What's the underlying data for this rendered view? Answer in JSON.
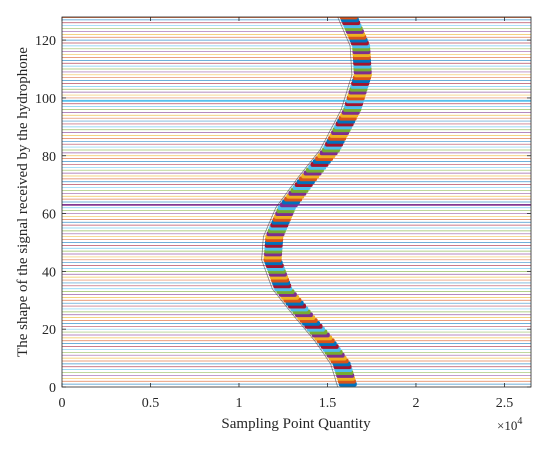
{
  "chart_data": {
    "type": "line",
    "title": "",
    "xlabel": "Sampling Point Quantity",
    "ylabel": "The shape of the signal received by the hydrophone",
    "x_exponent_label": "×10",
    "x_exponent_power": "4",
    "xlim": [
      0,
      26500
    ],
    "ylim": [
      0,
      128
    ],
    "x_ticks": [
      0,
      5000,
      10000,
      15000,
      20000,
      25000
    ],
    "x_tick_labels": [
      "0",
      "0.5",
      "1",
      "1.5",
      "2",
      "2.5"
    ],
    "y_ticks": [
      0,
      20,
      40,
      60,
      80,
      100,
      120
    ],
    "y_tick_labels": [
      "0",
      "20",
      "40",
      "60",
      "80",
      "100",
      "120"
    ],
    "grid": false,
    "legend": "none",
    "channel_count": 128,
    "channel_spacing": 1,
    "series_colors": [
      "#0072BD",
      "#D95319",
      "#EDB120",
      "#7E2F8E",
      "#77AC30",
      "#4DBEEE",
      "#A2142F"
    ],
    "highlighted_traces": [
      {
        "channel": 63,
        "color": "#7E2F8E"
      },
      {
        "channel": 99,
        "color": "#4DBEEE"
      },
      {
        "channel": 128,
        "color": "#D95319"
      }
    ],
    "wavefront": {
      "description_points_x": [
        16200,
        15800,
        14900,
        13800,
        12500,
        11900,
        12000,
        12700,
        13900,
        15200,
        16400,
        17000,
        16900,
        16200
      ],
      "description_points_y": [
        0,
        8,
        16,
        24,
        34,
        44,
        52,
        62,
        72,
        82,
        96,
        108,
        118,
        128
      ]
    }
  }
}
